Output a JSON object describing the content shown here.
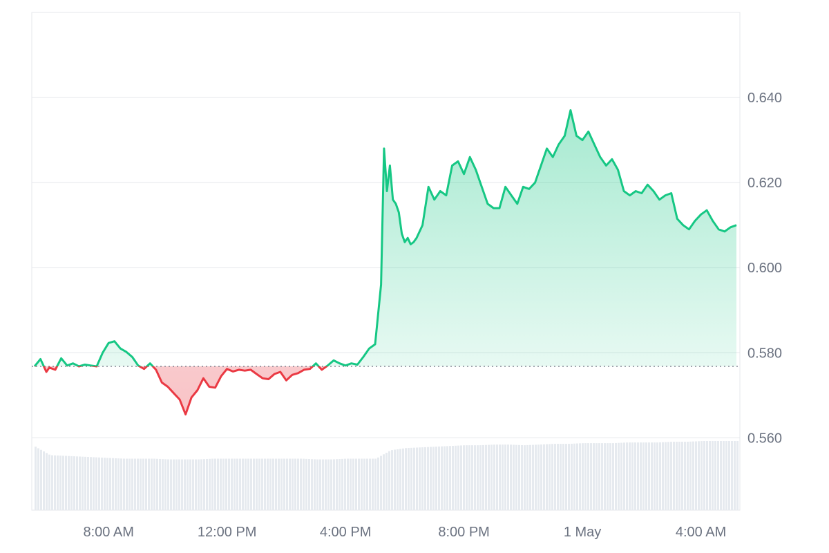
{
  "colors": {
    "up": "#16c784",
    "down": "#ea3943",
    "up_fill": "#16c784",
    "down_fill": "#ea3943",
    "grid": "#e5e7eb",
    "volume": "#e6eaef",
    "baseline": "#6b7280",
    "text": "#6b7280"
  },
  "chart_data": {
    "type": "line",
    "title": "",
    "xlabel": "",
    "ylabel": "",
    "ylim": [
      0.543,
      0.66
    ],
    "y_ticks": [
      "0.560",
      "0.580",
      "0.600",
      "0.620",
      "0.640"
    ],
    "y_tick_values": [
      0.56,
      0.58,
      0.6,
      0.62,
      0.64
    ],
    "x_tick_labels": [
      "8:00 AM",
      "12:00 PM",
      "4:00 PM",
      "8:00 PM",
      "1 May",
      "4:00 AM"
    ],
    "x_tick_hours": [
      8,
      12,
      16,
      20,
      24,
      28
    ],
    "baseline": 0.5768,
    "grid": true,
    "series": [
      {
        "hours": [
          5.5,
          5.7,
          5.9,
          6.0,
          6.2,
          6.4,
          6.6,
          6.8,
          7.0,
          7.2,
          7.4,
          7.6,
          7.8,
          8.0,
          8.2,
          8.4,
          8.6,
          8.8,
          9.0,
          9.2,
          9.4,
          9.6,
          9.8,
          10.0,
          10.2,
          10.4,
          10.6,
          10.8,
          11.0,
          11.2,
          11.4,
          11.6,
          11.8,
          12.0,
          12.2,
          12.4,
          12.6,
          12.8,
          13.0,
          13.2,
          13.4,
          13.6,
          13.8,
          14.0,
          14.2,
          14.4,
          14.6,
          14.8,
          15.0,
          15.2,
          15.4,
          15.6,
          15.8,
          16.0,
          16.2,
          16.4,
          16.6,
          16.8,
          17.0,
          17.2,
          17.3,
          17.4,
          17.5,
          17.6,
          17.7,
          17.8,
          17.9,
          18.0,
          18.1,
          18.2,
          18.3,
          18.4,
          18.6,
          18.8,
          19.0,
          19.2,
          19.4,
          19.6,
          19.8,
          20.0,
          20.2,
          20.4,
          20.6,
          20.8,
          21.0,
          21.2,
          21.4,
          21.6,
          21.8,
          22.0,
          22.2,
          22.4,
          22.6,
          22.8,
          23.0,
          23.2,
          23.4,
          23.6,
          23.8,
          24.0,
          24.2,
          24.4,
          24.6,
          24.8,
          25.0,
          25.2,
          25.4,
          25.6,
          25.8,
          26.0,
          26.2,
          26.4,
          26.6,
          26.8,
          27.0,
          27.2,
          27.4,
          27.6,
          27.8,
          28.0,
          28.2,
          28.4,
          28.6,
          28.8,
          29.0,
          29.2
        ],
        "values": [
          0.5768,
          0.5785,
          0.5755,
          0.5765,
          0.576,
          0.5787,
          0.577,
          0.5775,
          0.5768,
          0.5772,
          0.577,
          0.5768,
          0.58,
          0.5823,
          0.5827,
          0.581,
          0.5802,
          0.579,
          0.577,
          0.5762,
          0.5775,
          0.576,
          0.573,
          0.572,
          0.5705,
          0.569,
          0.5655,
          0.5695,
          0.5712,
          0.574,
          0.572,
          0.5718,
          0.5745,
          0.5762,
          0.5756,
          0.576,
          0.5758,
          0.576,
          0.575,
          0.574,
          0.5738,
          0.575,
          0.5755,
          0.5735,
          0.5748,
          0.5752,
          0.576,
          0.5762,
          0.5775,
          0.576,
          0.577,
          0.5782,
          0.5775,
          0.577,
          0.5775,
          0.5772,
          0.579,
          0.581,
          0.582,
          0.596,
          0.628,
          0.618,
          0.624,
          0.616,
          0.615,
          0.613,
          0.608,
          0.606,
          0.607,
          0.6055,
          0.606,
          0.607,
          0.61,
          0.619,
          0.616,
          0.618,
          0.617,
          0.624,
          0.625,
          0.622,
          0.626,
          0.623,
          0.619,
          0.615,
          0.614,
          0.614,
          0.619,
          0.617,
          0.615,
          0.619,
          0.6185,
          0.62,
          0.624,
          0.628,
          0.626,
          0.629,
          0.631,
          0.637,
          0.631,
          0.63,
          0.632,
          0.629,
          0.626,
          0.624,
          0.6255,
          0.623,
          0.618,
          0.617,
          0.618,
          0.6175,
          0.6195,
          0.618,
          0.616,
          0.617,
          0.6175,
          0.6115,
          0.61,
          0.609,
          0.611,
          0.6125,
          0.6135,
          0.611,
          0.609,
          0.6085,
          0.6095,
          0.61
        ]
      }
    ],
    "volume": {
      "hours": [
        5.5,
        6.0,
        6.5,
        7.0,
        7.5,
        8.0,
        8.5,
        9.0,
        9.5,
        10.0,
        10.5,
        11.0,
        11.5,
        12.0,
        12.5,
        13.0,
        13.5,
        14.0,
        14.5,
        15.0,
        15.5,
        16.0,
        16.5,
        17.0,
        17.5,
        18.0,
        18.5,
        19.0,
        19.5,
        20.0,
        20.5,
        21.0,
        21.5,
        22.0,
        22.5,
        23.0,
        23.5,
        24.0,
        24.5,
        25.0,
        25.5,
        26.0,
        26.5,
        27.0,
        27.5,
        28.0,
        28.5,
        29.0
      ],
      "values": [
        0.9,
        0.78,
        0.77,
        0.76,
        0.75,
        0.74,
        0.73,
        0.73,
        0.73,
        0.72,
        0.72,
        0.72,
        0.73,
        0.73,
        0.73,
        0.73,
        0.73,
        0.73,
        0.73,
        0.72,
        0.72,
        0.73,
        0.73,
        0.73,
        0.85,
        0.88,
        0.89,
        0.9,
        0.91,
        0.92,
        0.92,
        0.93,
        0.93,
        0.92,
        0.93,
        0.94,
        0.94,
        0.95,
        0.95,
        0.95,
        0.96,
        0.96,
        0.96,
        0.97,
        0.97,
        0.98,
        0.98,
        0.98
      ]
    }
  }
}
